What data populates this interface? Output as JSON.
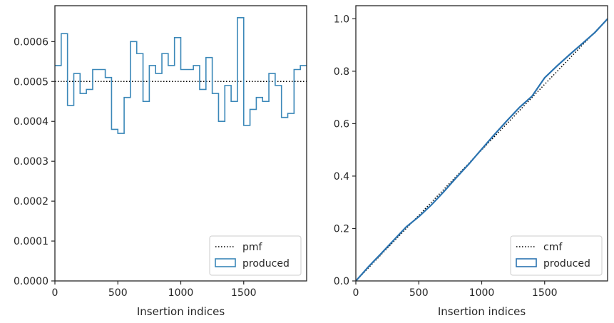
{
  "chart_data": [
    {
      "type": "line",
      "xlabel": "Insertion indices",
      "ylabel": "",
      "xlim": [
        0,
        2000
      ],
      "ylim": [
        0,
        0.00069
      ],
      "xticks": [
        0,
        500,
        1000,
        1500
      ],
      "xtick_labels": [
        "0",
        "500",
        "1000",
        "1500"
      ],
      "yticks": [
        0,
        0.0001,
        0.0002,
        0.0003,
        0.0004,
        0.0005,
        0.0006
      ],
      "ytick_labels": [
        "0.0000",
        "0.0001",
        "0.0002",
        "0.0003",
        "0.0004",
        "0.0005",
        "0.0006"
      ],
      "legend_position": "lower-right",
      "reference": {
        "name": "pmf",
        "value": 0.0005,
        "style": "dotted",
        "color": "#000000"
      },
      "series": [
        {
          "name": "produced",
          "style": "step",
          "color": "#3a87b8",
          "bin_width": 50,
          "bin_start": 0,
          "values": [
            0.00054,
            0.00062,
            0.00044,
            0.00052,
            0.00047,
            0.00048,
            0.00053,
            0.00053,
            0.00051,
            0.00038,
            0.00037,
            0.00046,
            0.0006,
            0.00057,
            0.00045,
            0.00054,
            0.00052,
            0.00057,
            0.00054,
            0.00061,
            0.00053,
            0.00053,
            0.00054,
            0.00048,
            0.00056,
            0.00047,
            0.0004,
            0.00049,
            0.00045,
            0.00066,
            0.00039,
            0.00043,
            0.00046,
            0.00045,
            0.00052,
            0.00049,
            0.00041,
            0.00042,
            0.00053,
            0.00054
          ]
        }
      ]
    },
    {
      "type": "line",
      "xlabel": "Insertion indices",
      "ylabel": "",
      "xlim": [
        0,
        2000
      ],
      "ylim": [
        0,
        1.05
      ],
      "xticks": [
        0,
        500,
        1000,
        1500
      ],
      "xtick_labels": [
        "0",
        "500",
        "1000",
        "1500"
      ],
      "yticks": [
        0,
        0.2,
        0.4,
        0.6,
        0.8,
        1.0
      ],
      "ytick_labels": [
        "0.0",
        "0.2",
        "0.4",
        "0.6",
        "0.8",
        "1.0"
      ],
      "legend_position": "lower-right",
      "reference": {
        "name": "cmf",
        "from": [
          0,
          0
        ],
        "to": [
          2000,
          1.0
        ],
        "style": "dotted",
        "color": "#000000"
      },
      "series": [
        {
          "name": "produced",
          "style": "line",
          "color": "#2a73b0",
          "x": [
            0,
            100,
            200,
            300,
            400,
            500,
            600,
            700,
            800,
            900,
            1000,
            1100,
            1200,
            1300,
            1400,
            1500,
            1600,
            1700,
            1800,
            1900,
            2000
          ],
          "y": [
            0.0,
            0.054,
            0.104,
            0.155,
            0.206,
            0.245,
            0.29,
            0.341,
            0.395,
            0.447,
            0.503,
            0.558,
            0.611,
            0.662,
            0.705,
            0.775,
            0.821,
            0.864,
            0.906,
            0.948,
            1.0
          ]
        }
      ]
    }
  ]
}
